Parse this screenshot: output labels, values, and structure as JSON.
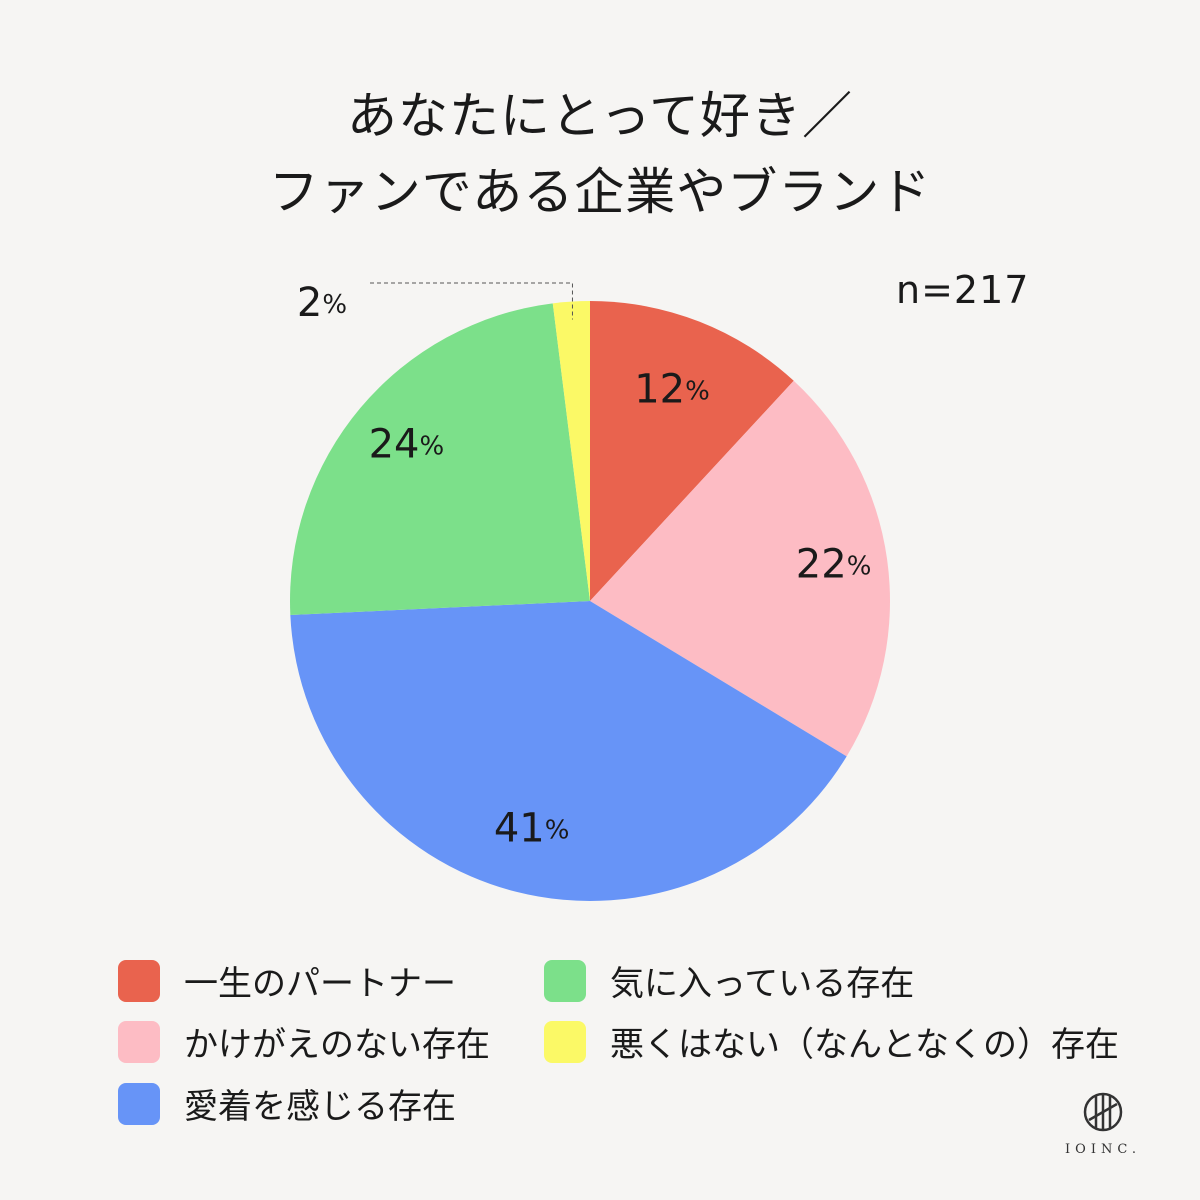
{
  "title": {
    "line1": "あなたにとって好き／",
    "line2": "ファンである企業やブランド"
  },
  "sample_label": "n=217",
  "chart_data": {
    "type": "pie",
    "title": "あなたにとって好き／ファンである企業やブランド",
    "n": 217,
    "start": "12 o'clock, clockwise",
    "slices": [
      {
        "label": "一生のパートナー",
        "value": 12,
        "value_label": "12",
        "color": "#e9634e"
      },
      {
        "label": "かけがえのない存在",
        "value": 22,
        "value_label": "22",
        "color": "#fdbcc4"
      },
      {
        "label": "愛着を感じる存在",
        "value": 41,
        "value_label": "41",
        "color": "#6794f7"
      },
      {
        "label": "気に入っている存在",
        "value": 24,
        "value_label": "24",
        "color": "#7ce08a"
      },
      {
        "label": "悪くはない（なんとなくの）存在",
        "value": 2,
        "value_label": "2",
        "color": "#fbf966"
      }
    ],
    "percent_symbol": "%"
  },
  "legend": {
    "items": [
      {
        "label": "一生のパートナー",
        "color": "#e9634e"
      },
      {
        "label": "かけがえのない存在",
        "color": "#fdbcc4"
      },
      {
        "label": "愛着を感じる存在",
        "color": "#6794f7"
      },
      {
        "label": "気に入っている存在",
        "color": "#7ce08a"
      },
      {
        "label": "悪くはない（なんとなくの）存在",
        "color": "#fbf966"
      }
    ]
  },
  "logo": {
    "text": "IOINC.",
    "icon": "ioinc-logo-icon"
  }
}
